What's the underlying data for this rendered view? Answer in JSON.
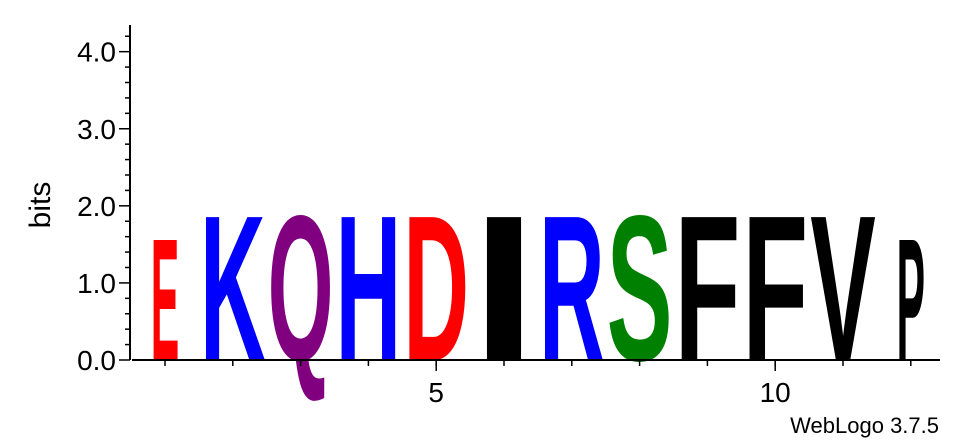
{
  "chart_data": {
    "type": "sequence-logo",
    "ylabel": "bits",
    "ylim": [
      0,
      4.32
    ],
    "y_ticks": [
      {
        "value": 0,
        "label": "0.0"
      },
      {
        "value": 1,
        "label": "1.0"
      },
      {
        "value": 2,
        "label": "2.0"
      },
      {
        "value": 3,
        "label": "3.0"
      },
      {
        "value": 4,
        "label": "4.0"
      }
    ],
    "x_ticks": [
      {
        "value": 5,
        "label": "5"
      },
      {
        "value": 10,
        "label": "10"
      }
    ],
    "positions": [
      {
        "position": 1,
        "letter": "E",
        "bits": 1.63,
        "color": "#ff0000",
        "width": 0.45
      },
      {
        "position": 2,
        "letter": "K",
        "bits": 1.94,
        "color": "#0000ff",
        "width": 1.0
      },
      {
        "position": 3,
        "letter": "Q",
        "bits": 1.94,
        "color": "#800080",
        "width": 1.0
      },
      {
        "position": 4,
        "letter": "H",
        "bits": 1.94,
        "color": "#0000ff",
        "width": 1.0
      },
      {
        "position": 5,
        "letter": "D",
        "bits": 1.94,
        "color": "#ff0000",
        "width": 1.0
      },
      {
        "position": 6,
        "letter": "I",
        "bits": 1.94,
        "color": "#000000",
        "width": 1.0
      },
      {
        "position": 7,
        "letter": "R",
        "bits": 1.94,
        "color": "#0000ff",
        "width": 1.0
      },
      {
        "position": 8,
        "letter": "S",
        "bits": 1.94,
        "color": "#008000",
        "width": 1.0
      },
      {
        "position": 9,
        "letter": "F",
        "bits": 1.94,
        "color": "#000000",
        "width": 1.0
      },
      {
        "position": 10,
        "letter": "F",
        "bits": 1.94,
        "color": "#000000",
        "width": 1.0
      },
      {
        "position": 11,
        "letter": "V",
        "bits": 1.94,
        "color": "#000000",
        "width": 1.0
      },
      {
        "position": 12,
        "letter": "P",
        "bits": 1.63,
        "color": "#000000",
        "width": 0.45
      }
    ]
  },
  "credit": "WebLogo 3.7.5"
}
